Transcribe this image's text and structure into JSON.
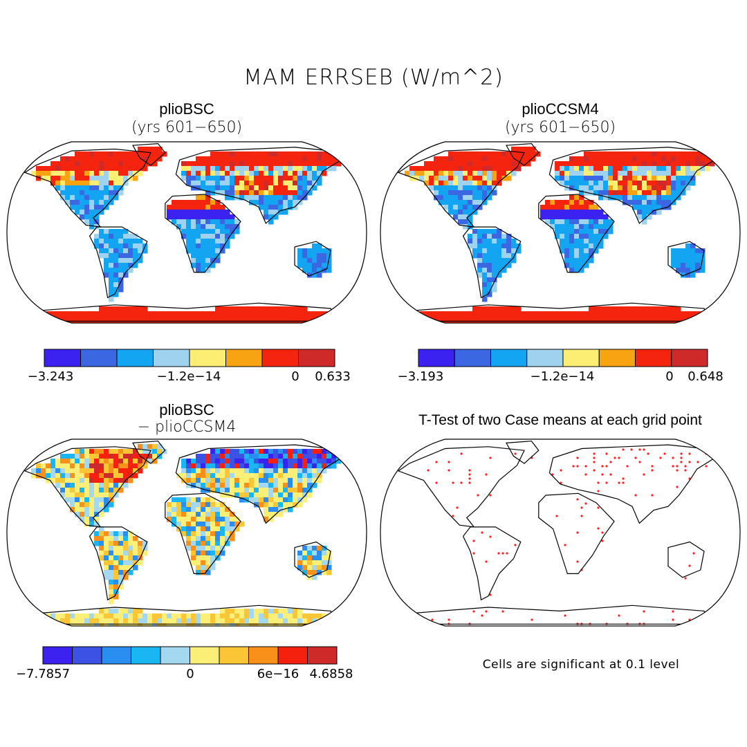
{
  "title": "MAM ERRSEB (W/m^2)",
  "panels": [
    {
      "title": "plioBSC",
      "subtitle": "(yrs 601−650)",
      "colorbar": {
        "colors": [
          "#3b22f0",
          "#3c67e2",
          "#14a5f2",
          "#9ed2ef",
          "#fbee72",
          "#f7a312",
          "#f5240f",
          "#cf2a2a"
        ],
        "labels": [
          "−3.243",
          "−1.2e−14",
          "0",
          "0.633"
        ]
      }
    },
    {
      "title": "plioCCSM4",
      "subtitle": "(yrs 601−650)",
      "colorbar": {
        "colors": [
          "#3b22f0",
          "#3c67e2",
          "#14a5f2",
          "#9ed2ef",
          "#fbee72",
          "#f7a312",
          "#f5240f",
          "#cf2a2a"
        ],
        "labels": [
          "−3.193",
          "−1.2e−14",
          "0",
          "0.648"
        ]
      }
    },
    {
      "title": "plioBSC",
      "subtitle": "− plioCCSM4",
      "colorbar": {
        "colors": [
          "#3b22f0",
          "#3c52e4",
          "#2a8ef0",
          "#1ab6f4",
          "#a4d8f0",
          "#fcef78",
          "#fbc635",
          "#f9901a",
          "#f5200e",
          "#cf2a2a"
        ],
        "labels": [
          "−7.7857",
          "0",
          "6e−16",
          "4.6858"
        ]
      }
    },
    {
      "title": "T-Test of two Case means at each grid point",
      "note": "Cells are significant at 0.1 level"
    }
  ]
}
